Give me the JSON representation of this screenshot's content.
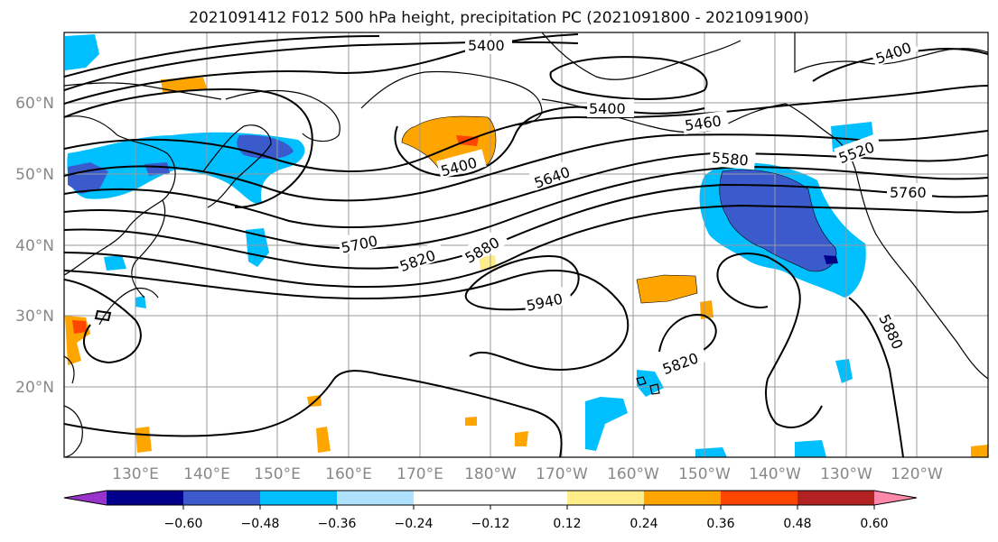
{
  "title": "2021091412 F012 500 hPa height, precipitation PC (2021091800 - 2021091900)",
  "map": {
    "lat_labels": [
      "60°N",
      "50°N",
      "40°N",
      "30°N",
      "20°N"
    ],
    "lon_labels": [
      "130°E",
      "140°E",
      "150°E",
      "160°E",
      "170°E",
      "180°W",
      "170°W",
      "160°W",
      "150°W",
      "140°W",
      "130°W",
      "120°W"
    ],
    "contour_labels": [
      "5400",
      "5400",
      "5400",
      "5400",
      "5460",
      "5520",
      "5580",
      "5640",
      "5700",
      "5760",
      "5820",
      "5820",
      "5880",
      "5880",
      "5940"
    ]
  },
  "colorbar": {
    "colors": [
      "#9933cc",
      "#00008b",
      "#3b5bcd",
      "#00bfff",
      "#b0e2ff",
      "#ffffff",
      "#ffec8b",
      "#ffa500",
      "#ff4500",
      "#b22222",
      "#ff88aa"
    ],
    "tick_labels": [
      "−0.60",
      "−0.48",
      "−0.36",
      "−0.24",
      "−0.12",
      "0.12",
      "0.24",
      "0.36",
      "0.48",
      "0.60"
    ]
  }
}
